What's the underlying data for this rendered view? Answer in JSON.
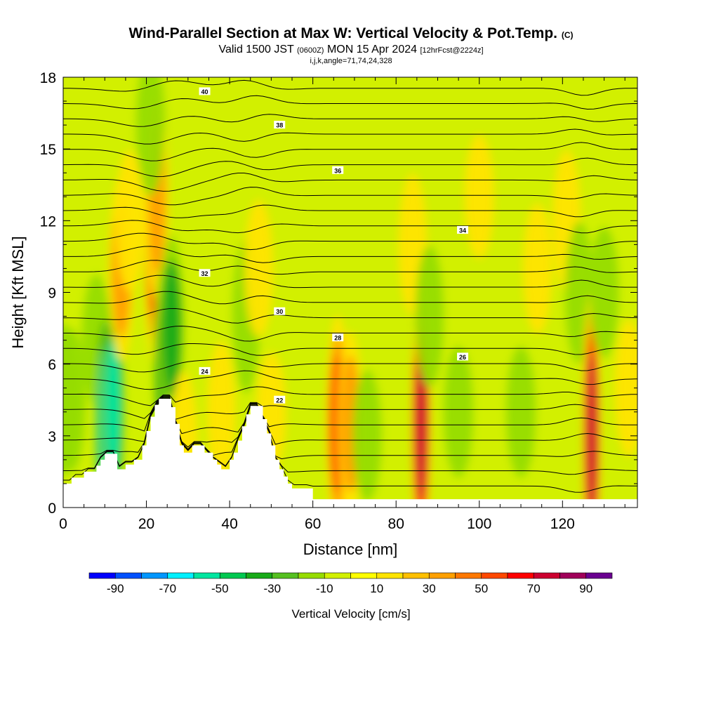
{
  "header": {
    "title_main": "Wind-Parallel Section at Max W: Vertical Velocity & Pot.Temp.",
    "title_mark": "(C)",
    "valid_a": "Valid 1500 JST",
    "valid_utc": "(0600Z)",
    "valid_b": "MON 15 Apr 2024",
    "valid_fcst": "[12hrFcst@2224z]",
    "indices": "i,j,k,angle=71,74,24,328"
  },
  "chart_data": {
    "type": "heatmap",
    "xlabel": "Distance [nm]",
    "ylabel": "Height [Kft MSL]",
    "xlim": [
      0,
      138
    ],
    "ylim": [
      0,
      18
    ],
    "x_ticks": [
      "0",
      "20",
      "40",
      "60",
      "80",
      "100",
      "120"
    ],
    "x_tick_values": [
      0,
      20,
      40,
      60,
      80,
      100,
      120
    ],
    "y_ticks": [
      "0",
      "3",
      "6",
      "9",
      "12",
      "15",
      "18"
    ],
    "y_tick_values": [
      0,
      3,
      6,
      9,
      12,
      15,
      18
    ],
    "colorbar": {
      "title": "Vertical Velocity [cm/s]",
      "labels": [
        "-90",
        "-70",
        "-50",
        "-30",
        "-10",
        "10",
        "30",
        "50",
        "70",
        "90"
      ],
      "bounds": [
        -100,
        100
      ],
      "colors": [
        "#0000ff",
        "#0050ff",
        "#0096ff",
        "#00f0ff",
        "#00e6a0",
        "#00c850",
        "#18aa18",
        "#55c020",
        "#96dc00",
        "#d2f000",
        "#ffff00",
        "#ffe400",
        "#ffc000",
        "#ffa000",
        "#ff7800",
        "#ff4800",
        "#ff0000",
        "#cc0030",
        "#a0005a",
        "#6a0090"
      ]
    },
    "velocity_cells": [
      {
        "x": 0,
        "z": 4.5,
        "w": -25
      },
      {
        "x": 2,
        "z": 4.5,
        "w": -20
      },
      {
        "x": 8,
        "z": 7,
        "w": -15
      },
      {
        "x": 10,
        "z": 3.5,
        "w": -70
      },
      {
        "x": 12,
        "z": 4.2,
        "w": -55
      },
      {
        "x": 14,
        "z": 10,
        "w": 40
      },
      {
        "x": 16,
        "z": 12,
        "w": 20
      },
      {
        "x": 22,
        "z": 11,
        "w": 65
      },
      {
        "x": 22.5,
        "z": 13,
        "w": 50
      },
      {
        "x": 24.5,
        "z": 6,
        "w": -50
      },
      {
        "x": 26,
        "z": 7.5,
        "w": -40
      },
      {
        "x": 21,
        "z": 16,
        "w": -20
      },
      {
        "x": 29,
        "z": 2.5,
        "w": 25
      },
      {
        "x": 38,
        "z": 4,
        "w": 20
      },
      {
        "x": 44,
        "z": 8,
        "w": -25
      },
      {
        "x": 47,
        "z": 10,
        "w": 18
      },
      {
        "x": 50,
        "z": 4,
        "w": 10
      },
      {
        "x": 66,
        "z": 3.5,
        "w": 55
      },
      {
        "x": 69,
        "z": 3.5,
        "w": 40
      },
      {
        "x": 73,
        "z": 3,
        "w": -15
      },
      {
        "x": 86,
        "z": 3.5,
        "w": 80
      },
      {
        "x": 84,
        "z": 11,
        "w": 20
      },
      {
        "x": 88,
        "z": 8,
        "w": -20
      },
      {
        "x": 95,
        "z": 4,
        "w": -15
      },
      {
        "x": 100,
        "z": 13,
        "w": 12
      },
      {
        "x": 110,
        "z": 4,
        "w": -15
      },
      {
        "x": 114,
        "z": 10,
        "w": 15
      },
      {
        "x": 121,
        "z": 12,
        "w": 20
      },
      {
        "x": 124,
        "z": 9,
        "w": -20
      },
      {
        "x": 127,
        "z": 3,
        "w": 90
      },
      {
        "x": 130,
        "z": 9,
        "w": -15
      },
      {
        "x": 136,
        "z": 5,
        "w": 18
      }
    ],
    "terrain": [
      [
        0,
        1
      ],
      [
        2,
        1
      ],
      [
        2,
        1.25
      ],
      [
        5,
        1.25
      ],
      [
        5,
        1.5
      ],
      [
        8,
        1.5
      ],
      [
        8,
        1.75
      ],
      [
        9,
        1.75
      ],
      [
        9,
        2
      ],
      [
        10,
        2
      ],
      [
        10,
        2.25
      ],
      [
        13,
        2.25
      ],
      [
        13,
        1.6
      ],
      [
        15,
        1.6
      ],
      [
        15,
        1.8
      ],
      [
        17,
        1.8
      ],
      [
        17,
        2
      ],
      [
        19,
        2
      ],
      [
        19,
        2.6
      ],
      [
        20,
        2.6
      ],
      [
        20,
        3.2
      ],
      [
        21,
        3.2
      ],
      [
        21,
        3.8
      ],
      [
        22,
        3.8
      ],
      [
        22,
        4.3
      ],
      [
        23,
        4.3
      ],
      [
        23,
        4.55
      ],
      [
        26,
        4.55
      ],
      [
        26,
        4.2
      ],
      [
        27,
        4.2
      ],
      [
        27,
        3.5
      ],
      [
        28,
        3.5
      ],
      [
        28,
        2.6
      ],
      [
        29,
        2.6
      ],
      [
        29,
        2.3
      ],
      [
        31,
        2.3
      ],
      [
        31,
        2.6
      ],
      [
        34,
        2.6
      ],
      [
        34,
        2.3
      ],
      [
        36,
        2.3
      ],
      [
        36,
        2
      ],
      [
        37,
        2
      ],
      [
        37,
        1.8
      ],
      [
        38,
        1.8
      ],
      [
        38,
        1.6
      ],
      [
        40,
        1.6
      ],
      [
        40,
        2
      ],
      [
        41,
        2
      ],
      [
        41,
        2.3
      ],
      [
        42,
        2.3
      ],
      [
        42,
        2.8
      ],
      [
        43,
        2.8
      ],
      [
        43,
        3.4
      ],
      [
        44,
        3.4
      ],
      [
        44,
        3.9
      ],
      [
        45,
        3.9
      ],
      [
        45,
        4.25
      ],
      [
        48,
        4.25
      ],
      [
        48,
        3.7
      ],
      [
        49,
        3.7
      ],
      [
        49,
        3.1
      ],
      [
        50,
        3.1
      ],
      [
        50,
        2.6
      ],
      [
        51,
        2.6
      ],
      [
        51,
        2.0
      ],
      [
        52,
        2.0
      ],
      [
        52,
        1.6
      ],
      [
        53,
        1.6
      ],
      [
        53,
        1.3
      ],
      [
        54,
        1.3
      ],
      [
        54,
        1.0
      ],
      [
        55,
        1.0
      ],
      [
        55,
        0.8
      ],
      [
        60,
        0.8
      ],
      [
        60,
        0.35
      ],
      [
        138,
        0.35
      ]
    ],
    "isentropes": [
      {
        "theta": 40,
        "label": "40",
        "z": 17.4
      },
      {
        "theta": 38,
        "label": "38",
        "z": 16.0
      },
      {
        "theta": 36,
        "label": "36",
        "z": 14.1
      },
      {
        "theta": 34,
        "label": "34",
        "z": 11.6
      },
      {
        "theta": 32,
        "label": "32",
        "z": 9.8
      },
      {
        "theta": 30,
        "label": "30",
        "z": 8.2
      },
      {
        "theta": 28,
        "label": "28",
        "z": 7.1
      },
      {
        "theta": 26,
        "label": "26",
        "z": 6.3
      },
      {
        "theta": 24,
        "label": "24",
        "z": 5.7
      },
      {
        "theta": 22,
        "label": "22",
        "z": 4.5
      }
    ]
  }
}
